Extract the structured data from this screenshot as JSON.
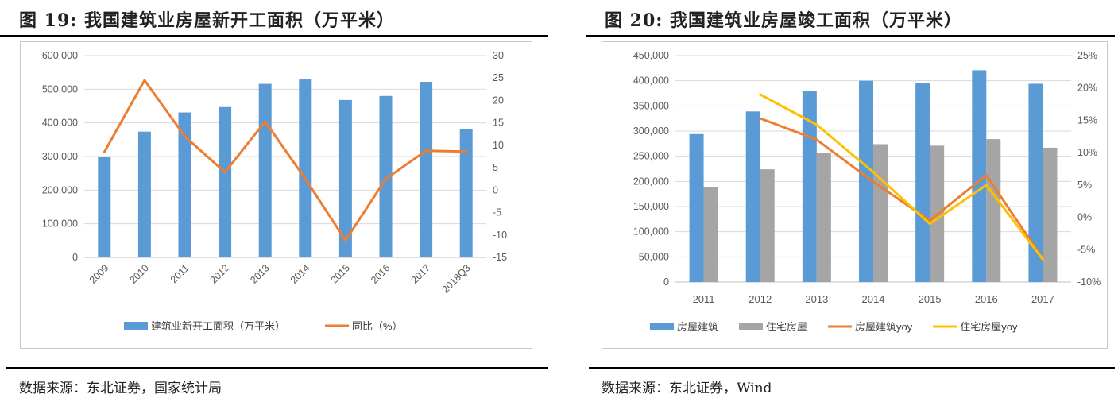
{
  "left": {
    "title": "图 19: 我国建筑业房屋新开工面积（万平米）",
    "source": "数据来源：东北证券，国家统计局"
  },
  "right": {
    "title": "图 20: 我国建筑业房屋竣工面积（万平米）",
    "source": "数据来源：东北证券，Wind"
  },
  "chart_data": [
    {
      "type": "bar",
      "categories": [
        "2009",
        "2010",
        "2011",
        "2012",
        "2013",
        "2014",
        "2015",
        "2016",
        "2017",
        "2018Q3"
      ],
      "ylim": [
        0,
        600000
      ],
      "y_ticks": [
        "600,000",
        "500,000",
        "400,000",
        "300,000",
        "200,000",
        "100,000",
        "0"
      ],
      "y2lim": [
        -15,
        30
      ],
      "y2_ticks": [
        "30",
        "25",
        "20",
        "15",
        "10",
        "5",
        "0",
        "-5",
        "-10",
        "-15"
      ],
      "series": [
        {
          "name": "建筑业新开工面积（万平米）",
          "type": "bar",
          "axis": "left",
          "color": "#5b9bd5",
          "values": [
            300000,
            374000,
            431000,
            447000,
            516000,
            529000,
            468000,
            480000,
            522000,
            382000
          ]
        },
        {
          "name": "同比（%）",
          "type": "line",
          "axis": "right",
          "color": "#ed7d31",
          "values": [
            8.5,
            24.5,
            12.0,
            4.0,
            15.3,
            2.5,
            -11.2,
            2.5,
            8.8,
            8.6
          ]
        }
      ],
      "legend_position": "bottom",
      "grid": true
    },
    {
      "type": "bar",
      "categories": [
        "2011",
        "2012",
        "2013",
        "2014",
        "2015",
        "2016",
        "2017"
      ],
      "ylim": [
        0,
        450000
      ],
      "y_ticks": [
        "450,000",
        "400,000",
        "350,000",
        "300,000",
        "250,000",
        "200,000",
        "150,000",
        "100,000",
        "50,000",
        "0"
      ],
      "y2lim": [
        -10,
        25
      ],
      "y2_ticks": [
        "25%",
        "20%",
        "15%",
        "10%",
        "5%",
        "0%",
        "-5%",
        "-10%"
      ],
      "series": [
        {
          "name": "房屋建筑",
          "type": "bar",
          "axis": "left",
          "color": "#5b9bd5",
          "values": [
            294000,
            339000,
            379000,
            400000,
            395000,
            421000,
            394000
          ]
        },
        {
          "name": "住宅房屋",
          "type": "bar",
          "axis": "left",
          "color": "#a5a5a5",
          "values": [
            188000,
            224000,
            256000,
            274000,
            271000,
            284000,
            267000
          ]
        },
        {
          "name": "房屋建筑yoy",
          "type": "line",
          "axis": "right",
          "color": "#ed7d31",
          "values": [
            null,
            15.3,
            12.0,
            5.5,
            -0.5,
            6.5,
            -6.4
          ]
        },
        {
          "name": "住宅房屋yoy",
          "type": "line",
          "axis": "right",
          "color": "#ffc000",
          "values": [
            null,
            19.0,
            14.3,
            7.0,
            -1.0,
            5.0,
            -6.5
          ]
        }
      ],
      "legend_position": "bottom",
      "grid": true
    }
  ]
}
